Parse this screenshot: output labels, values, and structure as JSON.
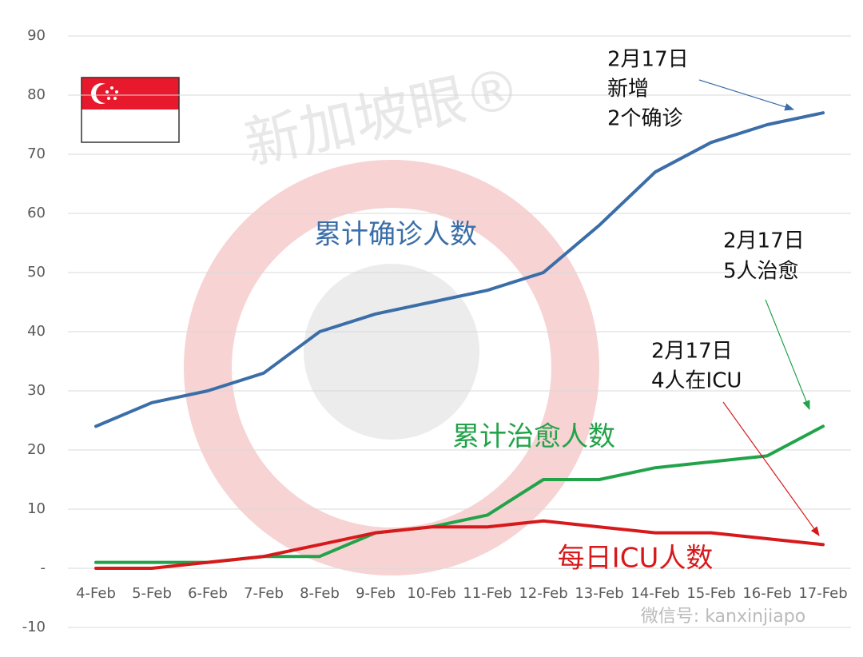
{
  "chart_data": {
    "type": "line",
    "categories": [
      "4-Feb",
      "5-Feb",
      "6-Feb",
      "7-Feb",
      "8-Feb",
      "9-Feb",
      "10-Feb",
      "11-Feb",
      "12-Feb",
      "13-Feb",
      "14-Feb",
      "15-Feb",
      "16-Feb",
      "17-Feb"
    ],
    "series": [
      {
        "name": "累计确诊人数",
        "color": "#3b6ea8",
        "values": [
          24,
          28,
          30,
          33,
          40,
          43,
          45,
          47,
          50,
          58,
          67,
          72,
          75,
          77
        ]
      },
      {
        "name": "累计治愈人数",
        "color": "#22a34a",
        "values": [
          1,
          1,
          1,
          2,
          2,
          6,
          7,
          9,
          15,
          15,
          17,
          18,
          19,
          24
        ]
      },
      {
        "name": "每日ICU人数",
        "color": "#d8191b",
        "values": [
          0,
          0,
          1,
          2,
          4,
          6,
          7,
          7,
          8,
          7,
          6,
          6,
          5,
          4
        ]
      }
    ],
    "ylim": [
      -10,
      90
    ],
    "yticks": [
      -10,
      {
        "value": 0,
        "label": "-"
      },
      10,
      20,
      30,
      40,
      50,
      60,
      70,
      80,
      90
    ],
    "grid": true,
    "annotations": [
      {
        "lines": [
          "2月17日",
          "新增",
          "2个确诊"
        ]
      },
      {
        "lines": [
          "2月17日",
          "5人治愈"
        ]
      },
      {
        "lines": [
          "2月17日",
          "4人在ICU"
        ]
      }
    ],
    "watermarks": [
      "新加坡眼®",
      "微信号: kanxinjiapo"
    ]
  }
}
